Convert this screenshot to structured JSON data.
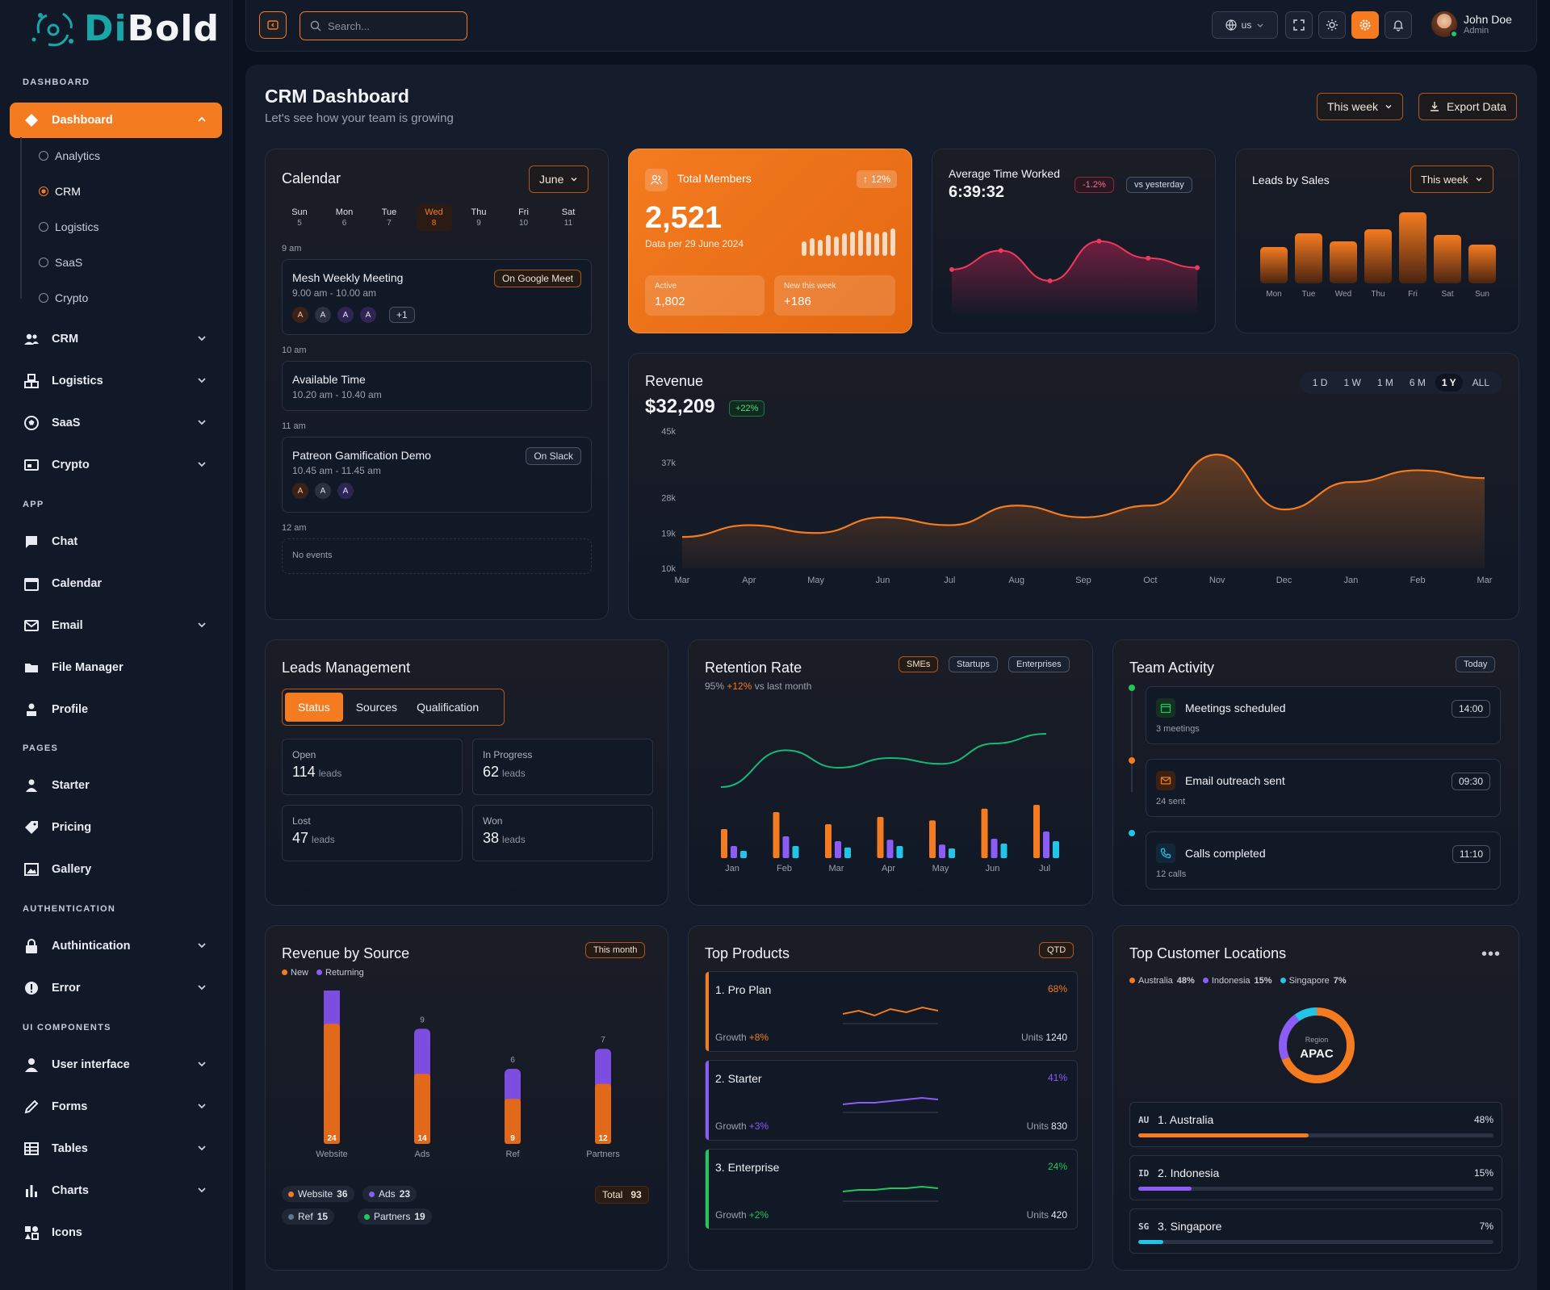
{
  "brand": {
    "logo_a": "Di",
    "logo_b": "Bold"
  },
  "sidebar": {
    "sections": {
      "dashboard": "DASHBOARD",
      "app": "APP",
      "pages": "PAGES",
      "auth": "AUTHENTICATION",
      "ui": "UI COMPONENTS"
    },
    "dashboard": "Dashboard",
    "sub": [
      "Analytics",
      "CRM",
      "Logistics",
      "SaaS",
      "Crypto"
    ],
    "groups": [
      "CRM",
      "Logistics",
      "SaaS",
      "Crypto"
    ],
    "app": [
      "Chat",
      "Calendar",
      "Email",
      "File Manager",
      "Profile"
    ],
    "pages": [
      "Starter",
      "Pricing",
      "Gallery"
    ],
    "auth": [
      "Authintication",
      "Error"
    ],
    "ui": [
      "User interface",
      "Forms",
      "Tables",
      "Charts",
      "Icons"
    ]
  },
  "topbar": {
    "search_placeholder": "Search...",
    "lang": "us",
    "user_name": "John Doe",
    "user_role": "Admin"
  },
  "page": {
    "title": "CRM Dashboard",
    "subtitle": "Let's see how your team is growing",
    "period": "This week",
    "export": "Export Data"
  },
  "calendar": {
    "title": "Calendar",
    "month": "June",
    "days": [
      {
        "d": "Sun",
        "n": "5"
      },
      {
        "d": "Mon",
        "n": "6"
      },
      {
        "d": "Tue",
        "n": "7"
      },
      {
        "d": "Wed",
        "n": "8"
      },
      {
        "d": "Thu",
        "n": "9"
      },
      {
        "d": "Fri",
        "n": "10"
      },
      {
        "d": "Sat",
        "n": "11"
      }
    ],
    "slots": [
      "9 am",
      "10 am",
      "11 am",
      "12 am"
    ],
    "events": [
      {
        "title": "Mesh Weekly Meeting",
        "time": "9.00 am - 10.00 am",
        "tag": "On Google Meet",
        "more": "+1"
      },
      {
        "title": "Available Time",
        "time": "10.20 am - 10.40 am"
      },
      {
        "title": "Patreon Gamification Demo",
        "time": "10.45 am - 11.45 am",
        "tag": "On Slack"
      }
    ],
    "avatar_letter": "A",
    "no_events": "No events"
  },
  "members": {
    "label": "Total Members",
    "change": "12%",
    "value": "2,521",
    "sub": "Data per 29 June 2024",
    "active_label": "Active",
    "active": "1,802",
    "new_label": "New this week",
    "new": "+186"
  },
  "time_worked": {
    "label": "Average Time Worked",
    "value": "6:39:32",
    "change": "-1.2%",
    "compare": "vs yesterday",
    "points": [
      30,
      50,
      18,
      60,
      42,
      32
    ]
  },
  "leads_sales": {
    "label": "Leads by Sales",
    "period": "This week",
    "days": [
      "Mon",
      "Tue",
      "Wed",
      "Thu",
      "Fri",
      "Sat",
      "Sun"
    ],
    "values": [
      45,
      62,
      52,
      67,
      88,
      60,
      48
    ]
  },
  "revenue": {
    "title": "Revenue",
    "value": "$32,209",
    "change": "+22%",
    "ranges": [
      "1 D",
      "1 W",
      "1 M",
      "6 M",
      "1 Y",
      "ALL"
    ],
    "active_range": "1 Y",
    "chart_data": {
      "type": "area",
      "x": [
        "Mar",
        "Apr",
        "May",
        "Jun",
        "Jul",
        "Aug",
        "Sep",
        "Oct",
        "Nov",
        "Dec",
        "Jan",
        "Feb",
        "Mar"
      ],
      "values": [
        18,
        21,
        19,
        23,
        21,
        26,
        23,
        26,
        39,
        25,
        32,
        35,
        33
      ],
      "yticks": [
        "45k",
        "37k",
        "28k",
        "19k",
        "10k"
      ],
      "ylim": [
        10,
        45
      ]
    }
  },
  "leads_mgmt": {
    "title": "Leads Management",
    "tabs": [
      "Status",
      "Sources",
      "Qualification"
    ],
    "stats": [
      {
        "label": "Open",
        "value": "114"
      },
      {
        "label": "In Progress",
        "value": "62"
      },
      {
        "label": "Lost",
        "value": "47"
      },
      {
        "label": "Won",
        "value": "38"
      }
    ],
    "unit": "leads"
  },
  "retention": {
    "title": "Retention Rate",
    "sub_pct": "95%",
    "sub_change": "+12%",
    "sub_rest": "vs last month",
    "filters": [
      "SMEs",
      "Startups",
      "Enterprises"
    ],
    "chart_data": {
      "type": "bar",
      "categories": [
        "Jan",
        "Feb",
        "Mar",
        "Apr",
        "May",
        "Jun",
        "Jul"
      ],
      "series": [
        {
          "values": [
            60,
            95,
            70,
            85,
            78,
            102,
            110
          ]
        },
        {
          "values": [
            25,
            45,
            35,
            38,
            28,
            40,
            55
          ]
        },
        {
          "values": [
            15,
            25,
            22,
            25,
            20,
            30,
            35
          ]
        }
      ],
      "line": [
        40,
        78,
        60,
        70,
        64,
        85,
        95
      ]
    }
  },
  "team": {
    "title": "Team Activity",
    "period": "Today",
    "items": [
      {
        "title": "Meetings scheduled",
        "sub": "3 meetings",
        "time": "14:00"
      },
      {
        "title": "Email outreach sent",
        "sub": "24 sent",
        "time": "09:30"
      },
      {
        "title": "Calls completed",
        "sub": "12 calls",
        "time": "11:10"
      }
    ]
  },
  "rev_source": {
    "title": "Revenue by Source",
    "period": "This month",
    "legend": [
      "New",
      "Returning"
    ],
    "chart_data": {
      "type": "bar",
      "categories": [
        "Website",
        "Ads",
        "Ref",
        "Partners"
      ],
      "series": [
        {
          "name": "New",
          "values": [
            24,
            14,
            9,
            12
          ]
        },
        {
          "name": "Returning",
          "values": [
            12,
            9,
            6,
            7
          ]
        }
      ]
    },
    "totals": [
      {
        "name": "Website",
        "value": "36",
        "color": "#f47b20"
      },
      {
        "name": "Ads",
        "value": "23",
        "color": "#8b5cf6"
      },
      {
        "name": "Ref",
        "value": "15",
        "color": "#64748b"
      },
      {
        "name": "Partners",
        "value": "19",
        "color": "#22c55e"
      }
    ],
    "total_label": "Total",
    "total": "93"
  },
  "products": {
    "title": "Top Products",
    "period": "QTD",
    "items": [
      {
        "name": "1. Pro Plan",
        "pct": "68%",
        "growth_label": "Growth",
        "growth": "+8%",
        "units_label": "Units",
        "units": "1240",
        "color": "#f47b20",
        "trend": [
          4,
          6,
          3,
          7,
          5,
          8,
          6
        ]
      },
      {
        "name": "2. Starter",
        "pct": "41%",
        "growth_label": "Growth",
        "growth": "+3%",
        "units_label": "Units",
        "units": "830",
        "color": "#8b5cf6",
        "trend": [
          3,
          4,
          4,
          5,
          6,
          7,
          6
        ]
      },
      {
        "name": "3. Enterprise",
        "pct": "24%",
        "growth_label": "Growth",
        "growth": "+2%",
        "units_label": "Units",
        "units": "420",
        "color": "#22c55e",
        "trend": [
          4,
          5,
          5,
          6,
          6,
          7,
          6
        ]
      }
    ]
  },
  "locations": {
    "title": "Top Customer Locations",
    "legend": [
      {
        "name": "Australia",
        "pct": "48%",
        "color": "#f47b20"
      },
      {
        "name": "Indonesia",
        "pct": "15%",
        "color": "#8b5cf6"
      },
      {
        "name": "Singapore",
        "pct": "7%",
        "color": "#22c5e8"
      }
    ],
    "donut_label": "Region",
    "donut_value": "APAC",
    "items": [
      {
        "code": "AU",
        "name": "1. Australia",
        "pct": "48%",
        "value": 48,
        "color": "#f47b20"
      },
      {
        "code": "ID",
        "name": "2. Indonesia",
        "pct": "15%",
        "value": 15,
        "color": "#8b5cf6"
      },
      {
        "code": "SG",
        "name": "3. Singapore",
        "pct": "7%",
        "value": 7,
        "color": "#22c5e8"
      }
    ]
  }
}
